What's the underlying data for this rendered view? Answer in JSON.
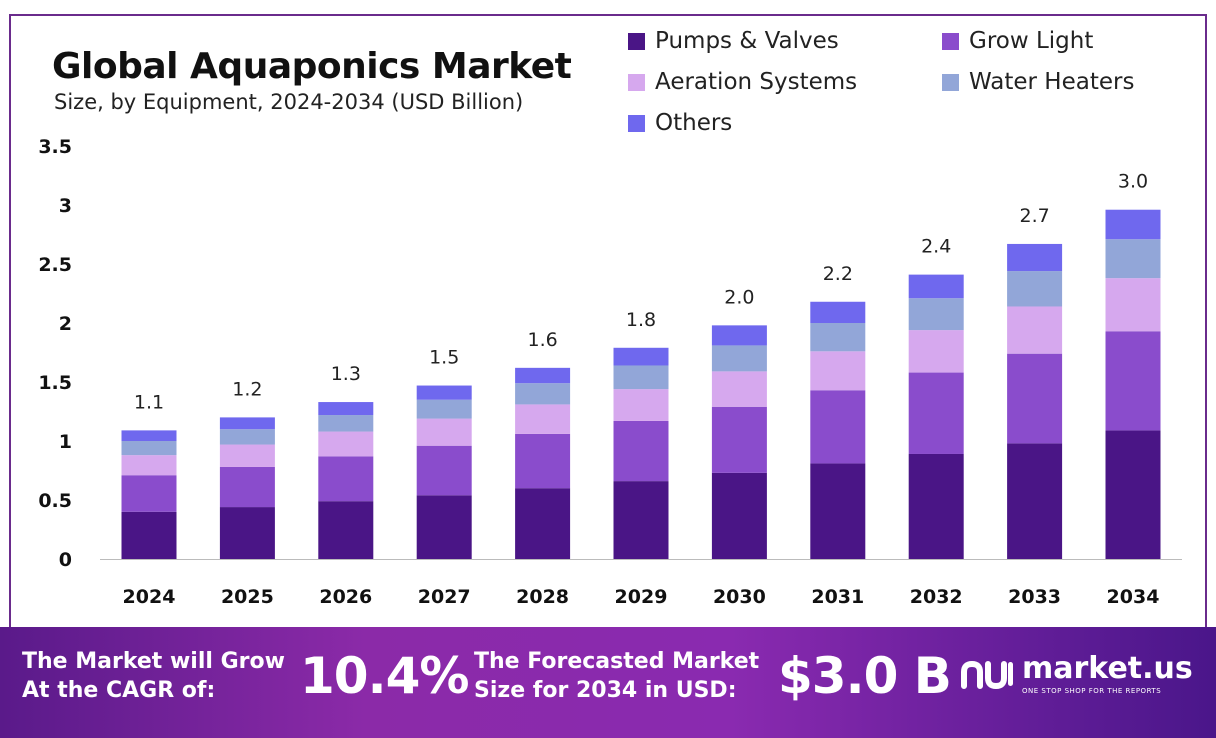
{
  "header": {
    "title": "Global Aquaponics Market",
    "subtitle": "Size, by Equipment, 2024-2034 (USD Billion)"
  },
  "chart_data": {
    "type": "bar",
    "stacked": true,
    "categories": [
      "2024",
      "2025",
      "2026",
      "2027",
      "2028",
      "2029",
      "2030",
      "2031",
      "2032",
      "2033",
      "2034"
    ],
    "series": [
      {
        "name": "Pumps & Valves",
        "color": "#4a1586",
        "values": [
          0.4,
          0.44,
          0.49,
          0.54,
          0.6,
          0.66,
          0.73,
          0.81,
          0.89,
          0.98,
          1.09
        ]
      },
      {
        "name": "Grow Light",
        "color": "#8a4ccc",
        "values": [
          0.31,
          0.34,
          0.38,
          0.42,
          0.46,
          0.51,
          0.56,
          0.62,
          0.69,
          0.76,
          0.84
        ]
      },
      {
        "name": "Aeration Systems",
        "color": "#d6a8ee",
        "values": [
          0.17,
          0.19,
          0.21,
          0.23,
          0.25,
          0.27,
          0.3,
          0.33,
          0.36,
          0.4,
          0.45
        ]
      },
      {
        "name": "Water Heaters",
        "color": "#92a6d8",
        "values": [
          0.12,
          0.13,
          0.14,
          0.16,
          0.18,
          0.2,
          0.22,
          0.24,
          0.27,
          0.3,
          0.33
        ]
      },
      {
        "name": "Others",
        "color": "#6f68ee",
        "values": [
          0.09,
          0.1,
          0.11,
          0.12,
          0.13,
          0.15,
          0.17,
          0.18,
          0.2,
          0.23,
          0.25
        ]
      }
    ],
    "totals": [
      "1.1",
      "1.2",
      "1.3",
      "1.5",
      "1.6",
      "1.8",
      "2.0",
      "2.2",
      "2.4",
      "2.7",
      "3.0"
    ],
    "y_ticks": [
      "0",
      "0.5",
      "1",
      "1.5",
      "2",
      "2.5",
      "3",
      "3.5"
    ],
    "ylim": [
      0,
      3.5
    ],
    "legend_position": "top-right",
    "grid": false
  },
  "footer": {
    "cagr_text_line1": "The Market will Grow",
    "cagr_text_line2": "At the CAGR of:",
    "cagr_value": "10.4%",
    "forecast_text_line1": "The Forecasted Market",
    "forecast_text_line2": "Size for 2034 in USD:",
    "forecast_value": "$3.0 B",
    "brand_name": "market.us",
    "brand_tagline": "ONE STOP SHOP FOR THE REPORTS",
    "brand_icon": "market-us-logo-icon"
  }
}
